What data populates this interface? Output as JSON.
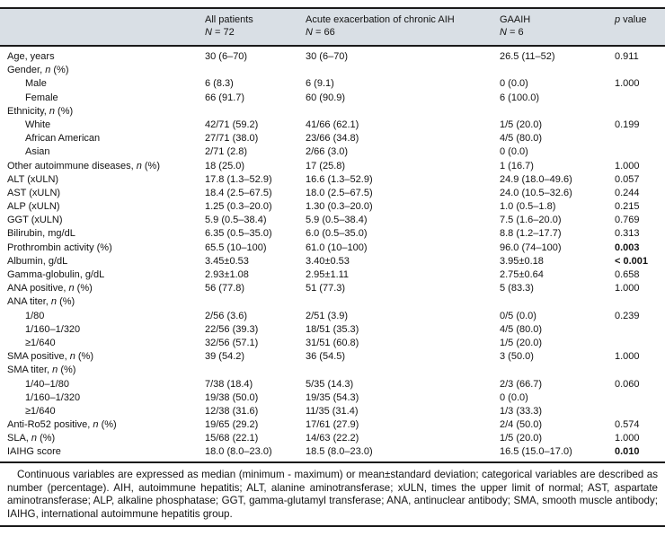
{
  "table": {
    "header": {
      "col_all": {
        "title": "All patients",
        "n_italic": "N",
        "n_rest": " = 72"
      },
      "col_acute": {
        "title": "Acute exacerbation of chronic AIH",
        "n_italic": "N",
        "n_rest": " = 66"
      },
      "col_gaaih": {
        "title": "GAAIH",
        "n_italic": "N",
        "n_rest": " = 6"
      },
      "col_p": {
        "p_italic": "p",
        "p_rest": " value"
      }
    },
    "rows": [
      {
        "label": [
          {
            "t": "Age, years"
          }
        ],
        "ind": 0,
        "c1": "30 (6–70)",
        "c2": "30 (6–70)",
        "c3": "26.5 (11–52)",
        "p": "0.911",
        "pb": false
      },
      {
        "label": [
          {
            "t": "Gender, "
          },
          {
            "t": "n",
            "i": true
          },
          {
            "t": " (%)"
          }
        ],
        "ind": 0,
        "c1": "",
        "c2": "",
        "c3": "",
        "p": "",
        "pb": false
      },
      {
        "label": [
          {
            "t": "Male"
          }
        ],
        "ind": 1,
        "c1": "6 (8.3)",
        "c2": "6 (9.1)",
        "c3": "0 (0.0)",
        "p": "1.000",
        "pb": false
      },
      {
        "label": [
          {
            "t": "Female"
          }
        ],
        "ind": 1,
        "c1": "66 (91.7)",
        "c2": "60 (90.9)",
        "c3": "6 (100.0)",
        "p": "",
        "pb": false
      },
      {
        "label": [
          {
            "t": "Ethnicity, "
          },
          {
            "t": "n",
            "i": true
          },
          {
            "t": " (%)"
          }
        ],
        "ind": 0,
        "c1": "",
        "c2": "",
        "c3": "",
        "p": "",
        "pb": false
      },
      {
        "label": [
          {
            "t": "White"
          }
        ],
        "ind": 1,
        "c1": "42/71 (59.2)",
        "c2": "41/66 (62.1)",
        "c3": "1/5 (20.0)",
        "p": "0.199",
        "pb": false
      },
      {
        "label": [
          {
            "t": "African American"
          }
        ],
        "ind": 1,
        "c1": "27/71 (38.0)",
        "c2": "23/66 (34.8)",
        "c3": "4/5 (80.0)",
        "p": "",
        "pb": false
      },
      {
        "label": [
          {
            "t": "Asian"
          }
        ],
        "ind": 1,
        "c1": "2/71 (2.8)",
        "c2": "2/66 (3.0)",
        "c3": "0 (0.0)",
        "p": "",
        "pb": false
      },
      {
        "label": [
          {
            "t": "Other autoimmune diseases, "
          },
          {
            "t": "n",
            "i": true
          },
          {
            "t": " (%)"
          }
        ],
        "ind": 0,
        "c1": "18 (25.0)",
        "c2": "17 (25.8)",
        "c3": "1 (16.7)",
        "p": "1.000",
        "pb": false
      },
      {
        "label": [
          {
            "t": "ALT (xULN)"
          }
        ],
        "ind": 0,
        "c1": "17.8 (1.3–52.9)",
        "c2": "16.6 (1.3–52.9)",
        "c3": "24.9 (18.0–49.6)",
        "p": "0.057",
        "pb": false
      },
      {
        "label": [
          {
            "t": "AST (xULN)"
          }
        ],
        "ind": 0,
        "c1": "18.4 (2.5–67.5)",
        "c2": "18.0 (2.5–67.5)",
        "c3": "24.0 (10.5–32.6)",
        "p": "0.244",
        "pb": false
      },
      {
        "label": [
          {
            "t": "ALP (xULN)"
          }
        ],
        "ind": 0,
        "c1": "1.25 (0.3–20.0)",
        "c2": "1.30 (0.3–20.0)",
        "c3": "1.0 (0.5–1.8)",
        "p": "0.215",
        "pb": false
      },
      {
        "label": [
          {
            "t": "GGT (xULN)"
          }
        ],
        "ind": 0,
        "c1": "5.9 (0.5–38.4)",
        "c2": "5.9 (0.5–38.4)",
        "c3": "7.5 (1.6–20.0)",
        "p": "0.769",
        "pb": false
      },
      {
        "label": [
          {
            "t": "Bilirubin, mg/dL"
          }
        ],
        "ind": 0,
        "c1": "6.35 (0.5–35.0)",
        "c2": "6.0 (0.5–35.0)",
        "c3": "8.8 (1.2–17.7)",
        "p": "0.313",
        "pb": false
      },
      {
        "label": [
          {
            "t": "Prothrombin activity (%)"
          }
        ],
        "ind": 0,
        "c1": "65.5 (10–100)",
        "c2": "61.0 (10–100)",
        "c3": "96.0 (74–100)",
        "p": "0.003",
        "pb": true
      },
      {
        "label": [
          {
            "t": "Albumin, g/dL"
          }
        ],
        "ind": 0,
        "c1": "3.45±0.53",
        "c2": "3.40±0.53",
        "c3": "3.95±0.18",
        "p": "< 0.001",
        "pb": true
      },
      {
        "label": [
          {
            "t": "Gamma-globulin, g/dL"
          }
        ],
        "ind": 0,
        "c1": "2.93±1.08",
        "c2": "2.95±1.11",
        "c3": "2.75±0.64",
        "p": "0.658",
        "pb": false
      },
      {
        "label": [
          {
            "t": "ANA positive, "
          },
          {
            "t": "n",
            "i": true
          },
          {
            "t": " (%)"
          }
        ],
        "ind": 0,
        "c1": "56 (77.8)",
        "c2": "51 (77.3)",
        "c3": "5 (83.3)",
        "p": "1.000",
        "pb": false
      },
      {
        "label": [
          {
            "t": "ANA titer, "
          },
          {
            "t": "n",
            "i": true
          },
          {
            "t": " (%)"
          }
        ],
        "ind": 0,
        "c1": "",
        "c2": "",
        "c3": "",
        "p": "",
        "pb": false
      },
      {
        "label": [
          {
            "t": "1/80"
          }
        ],
        "ind": 1,
        "c1": "2/56 (3.6)",
        "c2": "2/51 (3.9)",
        "c3": "0/5 (0.0)",
        "p": "0.239",
        "pb": false
      },
      {
        "label": [
          {
            "t": "1/160–1/320"
          }
        ],
        "ind": 1,
        "c1": "22/56 (39.3)",
        "c2": "18/51 (35.3)",
        "c3": "4/5 (80.0)",
        "p": "",
        "pb": false
      },
      {
        "label": [
          {
            "t": "≥1/640"
          }
        ],
        "ind": 1,
        "c1": "32/56 (57.1)",
        "c2": "31/51 (60.8)",
        "c3": "1/5 (20.0)",
        "p": "",
        "pb": false
      },
      {
        "label": [
          {
            "t": "SMA positive, "
          },
          {
            "t": "n",
            "i": true
          },
          {
            "t": " (%)"
          }
        ],
        "ind": 0,
        "c1": "39 (54.2)",
        "c2": "36 (54.5)",
        "c3": "3 (50.0)",
        "p": "1.000",
        "pb": false
      },
      {
        "label": [
          {
            "t": "SMA titer, "
          },
          {
            "t": "n",
            "i": true
          },
          {
            "t": " (%)"
          }
        ],
        "ind": 0,
        "c1": "",
        "c2": "",
        "c3": "",
        "p": "",
        "pb": false
      },
      {
        "label": [
          {
            "t": "1/40–1/80"
          }
        ],
        "ind": 1,
        "c1": "7/38 (18.4)",
        "c2": "5/35 (14.3)",
        "c3": "2/3 (66.7)",
        "p": "0.060",
        "pb": false
      },
      {
        "label": [
          {
            "t": "1/160–1/320"
          }
        ],
        "ind": 1,
        "c1": "19/38 (50.0)",
        "c2": "19/35 (54.3)",
        "c3": "0 (0.0)",
        "p": "",
        "pb": false
      },
      {
        "label": [
          {
            "t": "≥1/640"
          }
        ],
        "ind": 1,
        "c1": "12/38 (31.6)",
        "c2": "11/35 (31.4)",
        "c3": "1/3 (33.3)",
        "p": "",
        "pb": false
      },
      {
        "label": [
          {
            "t": "Anti-Ro52 positive, "
          },
          {
            "t": "n",
            "i": true
          },
          {
            "t": " (%)"
          }
        ],
        "ind": 0,
        "c1": "19/65 (29.2)",
        "c2": "17/61 (27.9)",
        "c3": "2/4 (50.0)",
        "p": "0.574",
        "pb": false
      },
      {
        "label": [
          {
            "t": "SLA, "
          },
          {
            "t": "n",
            "i": true
          },
          {
            "t": " (%)"
          }
        ],
        "ind": 0,
        "c1": "15/68 (22.1)",
        "c2": "14/63 (22.2)",
        "c3": "1/5 (20.0)",
        "p": "1.000",
        "pb": false
      },
      {
        "label": [
          {
            "t": "IAIHG score"
          }
        ],
        "ind": 0,
        "c1": "18.0 (8.0–23.0)",
        "c2": "18.5 (8.0–23.0)",
        "c3": "16.5 (15.0–17.0)",
        "p": "0.010",
        "pb": true
      }
    ]
  },
  "footnote": "Continuous variables are expressed as median (minimum - maximum) or mean±standard deviation; categorical variables are described as number (percentage). AIH, autoimmune hepatitis; ALT, alanine aminotransferase; xULN, times the upper limit of normal; AST, aspartate aminotransferase; ALP, alkaline phosphatase; GGT, gamma-glutamyl transferase; ANA, antinuclear antibody; SMA, smooth muscle antibody; IAIHG, international autoimmune hepatitis group.",
  "colors": {
    "header_band": "#d9dfe5",
    "rule": "#1a1a1a"
  }
}
